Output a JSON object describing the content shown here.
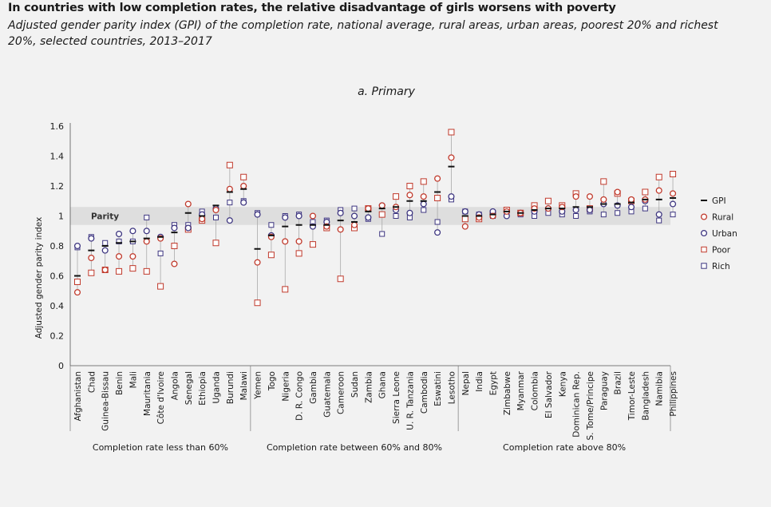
{
  "header": {
    "title": "In countries with low completion rates, the relative disadvantage of girls worsens with poverty",
    "subtitle": "Adjusted gender parity index (GPI) of the completion rate, national average, rural areas, urban areas, poorest 20% and richest 20%, selected countries, 2013–2017"
  },
  "chart_data": {
    "type": "scatter",
    "title": "a. Primary",
    "ylabel": "Adjusted gender parity index",
    "ylim": [
      0,
      1.6
    ],
    "yticks": [
      0,
      0.2,
      0.4,
      0.6,
      0.8,
      1,
      1.2,
      1.4,
      1.6
    ],
    "parity_band": {
      "label": "Parity",
      "range": [
        0.94,
        1.06
      ]
    },
    "colors": {
      "gpi": "#111111",
      "rural": "#c0392b",
      "urban": "#3d3580",
      "poor": "#c0392b",
      "rich": "#3d3580",
      "band": "#dedede",
      "connector": "#aaaaaa"
    },
    "legend": [
      {
        "key": "gpi",
        "label": "GPI",
        "marker": "dash"
      },
      {
        "key": "rural",
        "label": "Rural",
        "marker": "circle"
      },
      {
        "key": "urban",
        "label": "Urban",
        "marker": "circle"
      },
      {
        "key": "poor",
        "label": "Poor",
        "marker": "square"
      },
      {
        "key": "rich",
        "label": "Rich",
        "marker": "square"
      }
    ],
    "groups": [
      {
        "label": "Completion rate less than 60%",
        "start": 0,
        "count": 13
      },
      {
        "label": "Completion rate between 60% and 80%",
        "start": 13,
        "count": 15
      },
      {
        "label": "Completion rate above 80%",
        "start": 28,
        "count": 16
      }
    ],
    "countries": [
      {
        "name": "Afghanistan",
        "gpi": 0.6,
        "rural": 0.49,
        "urban": 0.8,
        "poor": 0.56,
        "rich": 0.79
      },
      {
        "name": "Chad",
        "gpi": 0.77,
        "rural": 0.72,
        "urban": 0.85,
        "poor": 0.62,
        "rich": 0.86
      },
      {
        "name": "Guinea-Bissau",
        "gpi": 0.8,
        "rural": 0.64,
        "urban": 0.77,
        "poor": 0.64,
        "rich": 0.82
      },
      {
        "name": "Benin",
        "gpi": 0.82,
        "rural": 0.73,
        "urban": 0.88,
        "poor": 0.63,
        "rich": 0.83
      },
      {
        "name": "Mali",
        "gpi": 0.83,
        "rural": 0.73,
        "urban": 0.9,
        "poor": 0.65,
        "rich": 0.83
      },
      {
        "name": "Mauritania",
        "gpi": 0.85,
        "rural": 0.83,
        "urban": 0.9,
        "poor": 0.63,
        "rich": 0.99
      },
      {
        "name": "Côte d'Ivoire",
        "gpi": 0.86,
        "rural": 0.85,
        "urban": 0.86,
        "poor": 0.53,
        "rich": 0.75
      },
      {
        "name": "Angola",
        "gpi": 0.89,
        "rural": 0.68,
        "urban": 0.92,
        "poor": 0.8,
        "rich": 0.94
      },
      {
        "name": "Senegal",
        "gpi": 1.02,
        "rural": 1.08,
        "urban": 0.92,
        "poor": 0.91,
        "rich": 0.94
      },
      {
        "name": "Ethiopia",
        "gpi": 1.0,
        "rural": 0.98,
        "urban": 1.01,
        "poor": 0.97,
        "rich": 1.03
      },
      {
        "name": "Uganda",
        "gpi": 1.07,
        "rural": 1.04,
        "urban": 1.05,
        "poor": 0.82,
        "rich": 0.99
      },
      {
        "name": "Burundi",
        "gpi": 1.16,
        "rural": 1.18,
        "urban": 0.97,
        "poor": 1.34,
        "rich": 1.09
      },
      {
        "name": "Malawi",
        "gpi": 1.18,
        "rural": 1.2,
        "urban": 1.09,
        "poor": 1.26,
        "rich": 1.1
      },
      {
        "name": "Yemen",
        "gpi": 0.78,
        "rural": 0.69,
        "urban": 1.01,
        "poor": 0.42,
        "rich": 1.02
      },
      {
        "name": "Togo",
        "gpi": 0.87,
        "rural": 0.86,
        "urban": 0.87,
        "poor": 0.74,
        "rich": 0.94
      },
      {
        "name": "Nigeria",
        "gpi": 0.93,
        "rural": 0.83,
        "urban": 0.99,
        "poor": 0.51,
        "rich": 1.0
      },
      {
        "name": "D. R. Congo",
        "gpi": 0.94,
        "rural": 0.83,
        "urban": 1.0,
        "poor": 0.75,
        "rich": 1.01
      },
      {
        "name": "Gambia",
        "gpi": 0.94,
        "rural": 1.0,
        "urban": 0.93,
        "poor": 0.81,
        "rich": 0.96
      },
      {
        "name": "Guatemala",
        "gpi": 0.94,
        "rural": 0.93,
        "urban": 0.96,
        "poor": 0.92,
        "rich": 0.97
      },
      {
        "name": "Cameroon",
        "gpi": 0.97,
        "rural": 0.91,
        "urban": 1.02,
        "poor": 0.58,
        "rich": 1.04
      },
      {
        "name": "Sudan",
        "gpi": 0.96,
        "rural": 0.94,
        "urban": 1.0,
        "poor": 0.92,
        "rich": 1.05
      },
      {
        "name": "Zambia",
        "gpi": 1.03,
        "rural": 1.05,
        "urban": 0.99,
        "poor": 1.05,
        "rich": 0.98
      },
      {
        "name": "Ghana",
        "gpi": 1.05,
        "rural": 1.07,
        "urban": 1.07,
        "poor": 1.01,
        "rich": 0.88
      },
      {
        "name": "Sierra Leone",
        "gpi": 1.06,
        "rural": 1.06,
        "urban": 1.04,
        "poor": 1.13,
        "rich": 1.0
      },
      {
        "name": "U. R. Tanzania",
        "gpi": 1.1,
        "rural": 1.14,
        "urban": 1.02,
        "poor": 1.2,
        "rich": 0.99
      },
      {
        "name": "Cambodia",
        "gpi": 1.1,
        "rural": 1.13,
        "urban": 1.08,
        "poor": 1.23,
        "rich": 1.04
      },
      {
        "name": "Eswatini",
        "gpi": 1.16,
        "rural": 1.25,
        "urban": 0.89,
        "poor": 1.12,
        "rich": 0.96
      },
      {
        "name": "Lesotho",
        "gpi": 1.33,
        "rural": 1.39,
        "urban": 1.13,
        "poor": 1.56,
        "rich": 1.11
      },
      {
        "name": "Nepal",
        "gpi": 1.0,
        "rural": 0.93,
        "urban": 1.03,
        "poor": 0.98,
        "rich": 1.03
      },
      {
        "name": "India",
        "gpi": 1.0,
        "rural": 0.99,
        "urban": 1.01,
        "poor": 0.98,
        "rich": 1.01
      },
      {
        "name": "Egypt",
        "gpi": 1.01,
        "rural": 1.0,
        "urban": 1.03,
        "poor": 1.01,
        "rich": 1.0
      },
      {
        "name": "Zimbabwe",
        "gpi": 1.03,
        "rural": 1.03,
        "urban": 1.0,
        "poor": 1.04,
        "rich": 1.01
      },
      {
        "name": "Myanmar",
        "gpi": 1.02,
        "rural": 1.02,
        "urban": 1.02,
        "poor": 1.02,
        "rich": 1.01
      },
      {
        "name": "Colombia",
        "gpi": 1.04,
        "rural": 1.05,
        "urban": 1.03,
        "poor": 1.07,
        "rich": 1.0
      },
      {
        "name": "El Salvador",
        "gpi": 1.05,
        "rural": 1.05,
        "urban": 1.05,
        "poor": 1.1,
        "rich": 1.02
      },
      {
        "name": "Kenya",
        "gpi": 1.05,
        "rural": 1.06,
        "urban": 1.03,
        "poor": 1.07,
        "rich": 1.01
      },
      {
        "name": "Dominican Rep.",
        "gpi": 1.06,
        "rural": 1.13,
        "urban": 1.04,
        "poor": 1.15,
        "rich": 1.0
      },
      {
        "name": "S. Tome/Principe",
        "gpi": 1.06,
        "rural": 1.13,
        "urban": 1.04,
        "poor": 1.05,
        "rich": 1.03
      },
      {
        "name": "Paraguay",
        "gpi": 1.08,
        "rural": 1.11,
        "urban": 1.08,
        "poor": 1.23,
        "rich": 1.01
      },
      {
        "name": "Brazil",
        "gpi": 1.08,
        "rural": 1.16,
        "urban": 1.07,
        "poor": 1.15,
        "rich": 1.02
      },
      {
        "name": "Timor-Leste",
        "gpi": 1.09,
        "rural": 1.11,
        "urban": 1.06,
        "poor": 1.1,
        "rich": 1.03
      },
      {
        "name": "Bangladesh",
        "gpi": 1.11,
        "rural": 1.11,
        "urban": 1.1,
        "poor": 1.16,
        "rich": 1.05
      },
      {
        "name": "Namibia",
        "gpi": 1.11,
        "rural": 1.17,
        "urban": 1.01,
        "poor": 1.26,
        "rich": 0.97
      },
      {
        "name": "Philippines",
        "gpi": 1.12,
        "rural": 1.15,
        "urban": 1.08,
        "poor": 1.28,
        "rich": 1.01
      }
    ]
  }
}
